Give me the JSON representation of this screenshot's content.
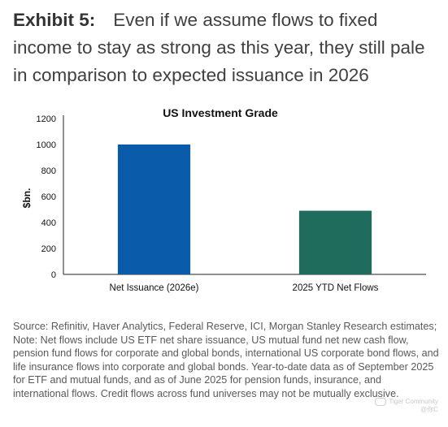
{
  "header": {
    "exhibit_label": "Exhibit 5:",
    "title": "Even if we assume flows to fixed income to stay as strong as this year, they still pale in comparison to expected issuance in 2026"
  },
  "chart_data": {
    "type": "bar",
    "title": "US Investment Grade",
    "xlabel": "",
    "ylabel": "$bn.",
    "categories": [
      "Net Issuance (2026e)",
      "2025 YTD Net Flows"
    ],
    "values": [
      1000,
      490
    ],
    "colors": [
      "#0b5bab",
      "#1f6b5c"
    ],
    "ylim": [
      0,
      1200
    ],
    "yticks": [
      0,
      200,
      400,
      600,
      800,
      1000,
      1200
    ],
    "grid": false
  },
  "notes": "Source: Refinitiv, Haver Analytics, Federal Reserve, ICI, Morgan Stanley Research estimates; Note: Net flows include US ETF net share issuance, US mutual fund net new cash flow, pension fund flows for corporate and global bonds, international US corporate bond flows, and life insurance flows into corporate and global bonds. Year-to-date data as of September 2025 for ETF and mutual funds, and as of June 2025 for pension funds, insurance, and international flows. Credit flows across fund universes may not be mutually exclusive.",
  "watermark": {
    "line1": "Tiger Community",
    "line2": "@你C"
  }
}
